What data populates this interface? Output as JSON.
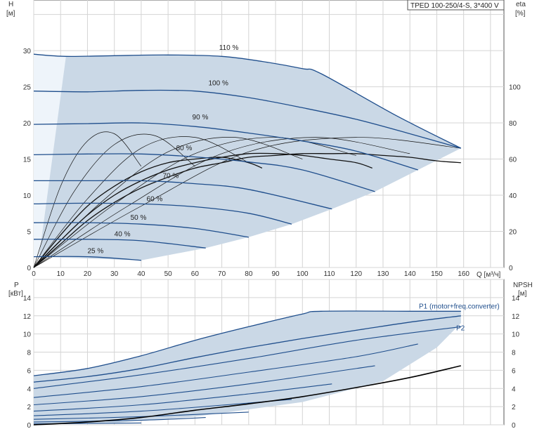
{
  "title": "TPED 100-250/4-S, 3*400 V",
  "colors": {
    "envelope_fill": "#cad8e6",
    "inner_fill": "#eef4fa",
    "curve": "#1f4e8c",
    "eta": "#111111",
    "npsh": "#000000",
    "grid": "#d4d4d4",
    "axis": "#555555"
  },
  "chart_data": [
    {
      "type": "line",
      "name": "pump-curves",
      "xlabel": "Q [м³/ч]",
      "ylabel_left": "H [м]",
      "ylabel_right": "eta [%]",
      "xlim": [
        0,
        175
      ],
      "ylim_left": [
        0,
        37
      ],
      "ylim_right": [
        0,
        148
      ],
      "x_ticks": [
        0,
        10,
        20,
        30,
        40,
        50,
        60,
        70,
        80,
        90,
        100,
        110,
        120,
        130,
        140,
        150,
        160
      ],
      "y_ticks_left": [
        0,
        5,
        10,
        15,
        20,
        25,
        30
      ],
      "y_ticks_right": [
        0,
        20,
        40,
        60,
        80,
        100
      ],
      "grid": true,
      "speed_curves": [
        {
          "label": "110 %",
          "x": [
            0,
            12,
            30,
            50,
            70,
            85,
            100,
            107,
            135,
            159
          ],
          "y": [
            29.5,
            29.2,
            29.3,
            29.4,
            29.2,
            28.5,
            27.5,
            26.8,
            21.0,
            16.5
          ]
        },
        {
          "label": "100 %",
          "x": [
            0,
            20,
            40,
            60,
            80,
            100,
            120,
            140,
            159
          ],
          "y": [
            24.4,
            24.3,
            24.5,
            24.4,
            23.5,
            22.1,
            20.5,
            18.5,
            16.5
          ]
        },
        {
          "label": "90 %",
          "x": [
            0,
            20,
            40,
            60,
            80,
            100,
            120,
            143
          ],
          "y": [
            19.8,
            19.9,
            20.0,
            19.5,
            18.6,
            17.5,
            16.1,
            13.5
          ]
        },
        {
          "label": "80 %",
          "x": [
            0,
            20,
            40,
            60,
            80,
            100,
            127
          ],
          "y": [
            15.6,
            15.7,
            15.7,
            15.3,
            14.6,
            13.5,
            10.5
          ]
        },
        {
          "label": "70 %",
          "x": [
            0,
            20,
            40,
            60,
            80,
            111
          ],
          "y": [
            12.0,
            12.0,
            12.0,
            11.6,
            10.8,
            8.1
          ]
        },
        {
          "label": "60 %",
          "x": [
            0,
            20,
            40,
            60,
            80,
            96
          ],
          "y": [
            8.8,
            8.9,
            8.8,
            8.4,
            7.5,
            6.0
          ]
        },
        {
          "label": "50 %",
          "x": [
            0,
            20,
            40,
            60,
            80
          ],
          "y": [
            6.2,
            6.2,
            6.0,
            5.4,
            4.2
          ]
        },
        {
          "label": "40 %",
          "x": [
            0,
            20,
            40,
            64
          ],
          "y": [
            3.9,
            3.9,
            3.7,
            2.7
          ]
        },
        {
          "label": "25 %",
          "x": [
            0,
            20,
            40
          ],
          "y": [
            1.5,
            1.5,
            1.0
          ]
        }
      ],
      "efficiency_curves": [
        {
          "x": [
            0,
            10,
            20,
            30,
            40
          ],
          "y": [
            0,
            45,
            70,
            74,
            56
          ]
        },
        {
          "x": [
            0,
            15,
            30,
            45,
            60
          ],
          "y": [
            0,
            42,
            68,
            73,
            56
          ]
        },
        {
          "x": [
            0,
            20,
            40,
            60,
            80
          ],
          "y": [
            0,
            38,
            66,
            72,
            58
          ]
        },
        {
          "x": [
            0,
            25,
            50,
            75,
            100
          ],
          "y": [
            0,
            36,
            64,
            72,
            60
          ]
        },
        {
          "x": [
            0,
            30,
            60,
            90,
            120
          ],
          "y": [
            0,
            35,
            63,
            72,
            62
          ]
        },
        {
          "x": [
            0,
            35,
            70,
            105,
            140
          ],
          "y": [
            0,
            34,
            63,
            72,
            63
          ]
        },
        {
          "x": [
            0,
            40,
            80,
            120,
            159
          ],
          "y": [
            0,
            34,
            64,
            72,
            66
          ]
        },
        {
          "x": [
            0,
            10,
            20,
            30,
            40,
            50,
            60,
            70,
            80,
            85
          ],
          "y": [
            0,
            18,
            34,
            45,
            53,
            58,
            60,
            61,
            58,
            55
          ]
        },
        {
          "x": [
            0,
            10,
            20,
            30,
            40,
            50,
            60,
            70,
            80,
            90,
            100,
            110,
            120,
            126
          ],
          "y": [
            0,
            15,
            29,
            40,
            48,
            54,
            58,
            61,
            63,
            63,
            62,
            60,
            58,
            55
          ]
        },
        {
          "x": [
            0,
            10,
            20,
            30,
            40,
            50,
            60,
            70,
            80,
            90,
            100,
            110,
            120,
            130,
            140,
            150,
            159
          ],
          "y": [
            0,
            13,
            26,
            36,
            44,
            50,
            55,
            58,
            61,
            62,
            63,
            63,
            63,
            62,
            61,
            59,
            58
          ]
        }
      ],
      "labels": {
        "x_unit": "Q [м³/ч]",
        "y_left_top": "H",
        "y_left_unit": "[м]",
        "y_right_top": "eta",
        "y_right_unit": "[%]"
      }
    },
    {
      "type": "line",
      "name": "power-npsh",
      "ylabel_left": "P [кВт]",
      "ylabel_right": "NPSH [м]",
      "xlim": [
        0,
        175
      ],
      "ylim_left": [
        0,
        16
      ],
      "ylim_right": [
        0,
        16
      ],
      "y_ticks_left": [
        0,
        2,
        4,
        6,
        8,
        10,
        12,
        14
      ],
      "y_ticks_right": [
        0,
        2,
        4,
        6,
        8,
        10,
        12,
        14
      ],
      "grid": true,
      "series": [
        {
          "name": "P1 (motor+freq.converter)",
          "x": [
            0,
            20,
            40,
            60,
            80,
            100,
            107,
            140,
            159
          ],
          "y": [
            5.4,
            6.2,
            7.6,
            9.3,
            10.8,
            12.2,
            12.5,
            12.5,
            12.5
          ]
        },
        {
          "name": "P2",
          "x": [
            0,
            20,
            40,
            60,
            80,
            100,
            120,
            140,
            159
          ],
          "y": [
            4.7,
            5.3,
            6.2,
            7.4,
            8.5,
            9.5,
            10.4,
            11.3,
            12.0
          ]
        }
      ],
      "speed_power_curves": [
        {
          "x": [
            0,
            40,
            80,
            120,
            159
          ],
          "y": [
            4.0,
            5.5,
            7.3,
            9.3,
            10.8
          ]
        },
        {
          "x": [
            0,
            40,
            80,
            120,
            143
          ],
          "y": [
            3.0,
            4.2,
            5.8,
            7.5,
            8.9
          ]
        },
        {
          "x": [
            0,
            40,
            80,
            127
          ],
          "y": [
            2.2,
            3.1,
            4.5,
            6.5
          ]
        },
        {
          "x": [
            0,
            40,
            80,
            111
          ],
          "y": [
            1.5,
            2.2,
            3.4,
            4.5
          ]
        },
        {
          "x": [
            0,
            40,
            80,
            96
          ],
          "y": [
            1.0,
            1.5,
            2.4,
            2.8
          ]
        },
        {
          "x": [
            0,
            40,
            80
          ],
          "y": [
            0.6,
            0.9,
            1.4
          ]
        },
        {
          "x": [
            0,
            40,
            64
          ],
          "y": [
            0.3,
            0.5,
            0.8
          ]
        },
        {
          "x": [
            0,
            40
          ],
          "y": [
            0.1,
            0.2
          ]
        }
      ],
      "npsh_curve": {
        "x": [
          0,
          20,
          40,
          60,
          80,
          100,
          120,
          140,
          159
        ],
        "y": [
          0,
          0.3,
          0.8,
          1.6,
          2.3,
          3.1,
          4.1,
          5.2,
          6.5
        ]
      }
    }
  ]
}
